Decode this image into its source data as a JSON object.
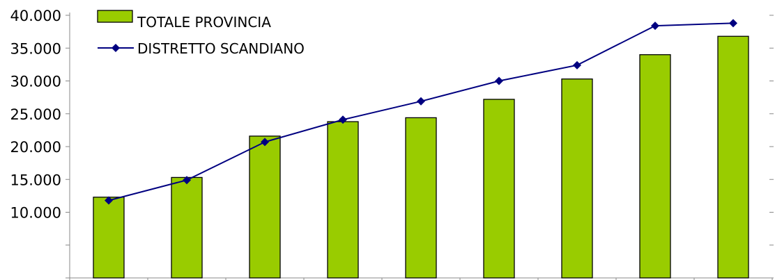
{
  "chart_data": {
    "type": "bar",
    "categories": [
      "",
      "",
      "",
      "",
      "",
      "",
      "",
      "",
      ""
    ],
    "series": [
      {
        "name": "TOTALE PROVINCIA",
        "type": "bar",
        "color": "#99cc00",
        "values": [
          12300,
          15300,
          21600,
          23800,
          24400,
          27200,
          30300,
          34000,
          36800
        ]
      },
      {
        "name": "DISTRETTO SCANDIANO",
        "type": "line",
        "color": "#000080",
        "marker": "diamond",
        "values": [
          11800,
          14900,
          20700,
          24100,
          26900,
          30000,
          32400,
          38400,
          38800
        ]
      }
    ],
    "y_ticks": [
      "10.000",
      "15.000",
      "20.000",
      "25.000",
      "30.000",
      "35.000",
      "40.000"
    ],
    "ylim": [
      0,
      40000
    ],
    "grid": false,
    "legend_position": "top-left"
  }
}
